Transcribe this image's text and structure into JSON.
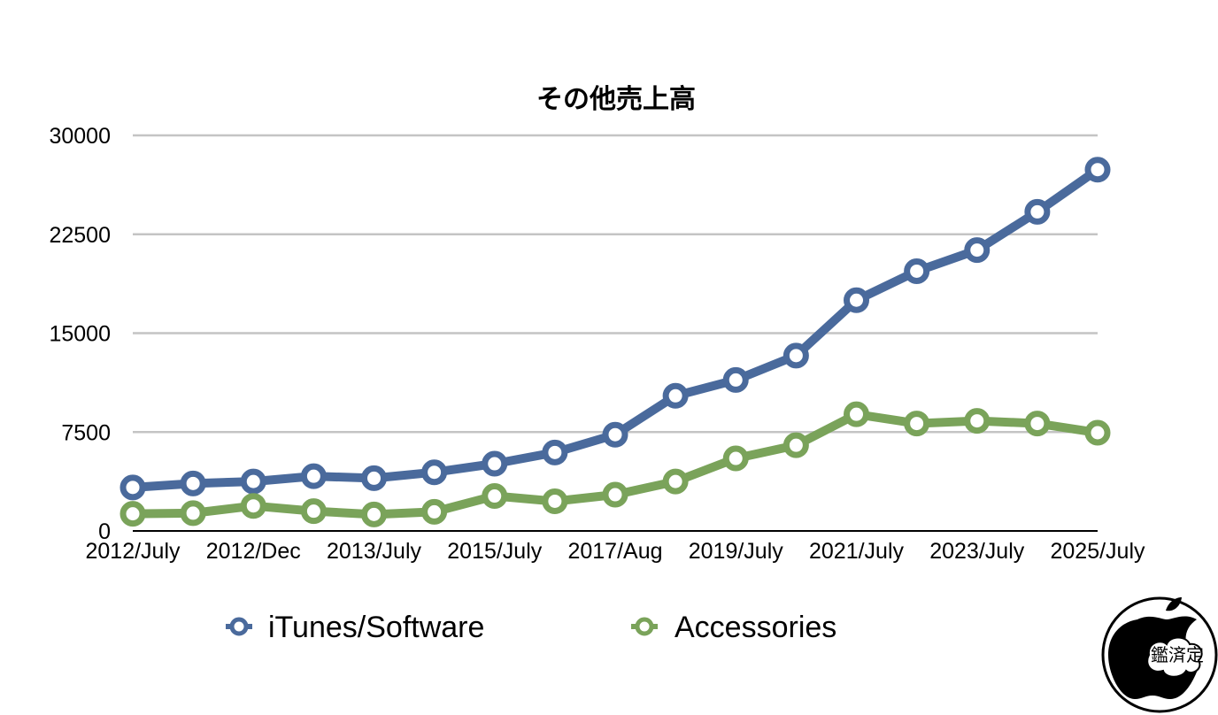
{
  "chart_data": {
    "type": "line",
    "title": "その他売上高",
    "xlabel": "",
    "ylabel": "",
    "ylim": [
      0,
      30000
    ],
    "yticks": [
      0,
      7500,
      15000,
      22500,
      30000
    ],
    "ytick_labels": [
      "0",
      "7500",
      "15000",
      "22500",
      "30000"
    ],
    "x_tick_labels": [
      "2012/July",
      "2012/Dec",
      "2013/July",
      "2015/July",
      "2017/Aug",
      "2019/July",
      "2021/July",
      "2023/July",
      "2025/July"
    ],
    "grid": true,
    "legend_position": "bottom",
    "series": [
      {
        "name": "iTunes/Software",
        "color": "#4a6a9c",
        "values": [
          3300,
          3600,
          3750,
          4150,
          4000,
          4450,
          5100,
          5950,
          7300,
          10250,
          11450,
          13300,
          17500,
          19700,
          21300,
          24200,
          27400
        ]
      },
      {
        "name": "Accessories",
        "color": "#7aa35a",
        "values": [
          1300,
          1350,
          1900,
          1500,
          1250,
          1450,
          2650,
          2250,
          2750,
          3750,
          5500,
          6500,
          8850,
          8150,
          8350,
          8150,
          7450
        ]
      }
    ]
  },
  "watermark": {
    "logo": "apple-logo-icon",
    "text": "鑑済定"
  }
}
